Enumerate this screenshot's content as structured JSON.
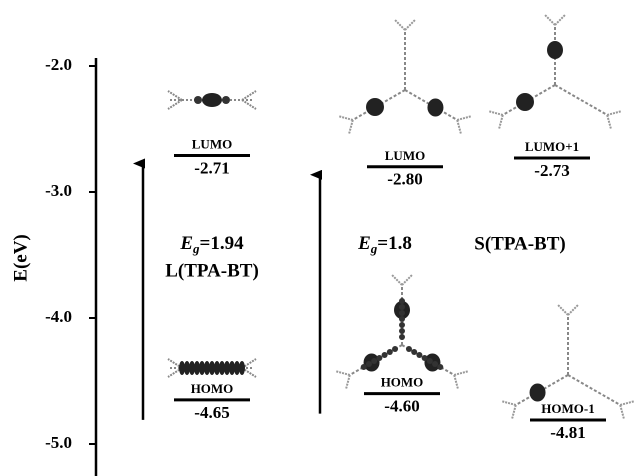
{
  "chart_data": {
    "type": "energy-level",
    "y_label": "E(eV)",
    "ylim": [
      -5.25,
      -1.95
    ],
    "yticks": [
      {
        "value": -2,
        "label": "-2.0"
      },
      {
        "value": -3,
        "label": "-3.0"
      },
      {
        "value": -4,
        "label": "-4.0"
      },
      {
        "value": -5,
        "label": "-5.0"
      }
    ],
    "groups": [
      {
        "name": "L(TPA-BT)",
        "eg": {
          "value": 1.94,
          "label": "Eg=1.94"
        },
        "levels": [
          {
            "name": "LUMO",
            "value": -2.71,
            "value_label": "-2.71"
          },
          {
            "name": "HOMO",
            "value": -4.65,
            "value_label": "-4.65"
          }
        ]
      },
      {
        "name": "S(TPA-BT)",
        "eg": {
          "value": 1.8,
          "label": "Eg=1.8"
        },
        "levels": [
          {
            "name": "LUMO",
            "value": -2.8,
            "value_label": "-2.80"
          },
          {
            "name": "LUMO+1",
            "value": -2.73,
            "value_label": "-2.73"
          },
          {
            "name": "HOMO",
            "value": -4.6,
            "value_label": "-4.60"
          },
          {
            "name": "HOMO-1",
            "value": -4.81,
            "value_label": "-4.81"
          }
        ]
      }
    ]
  }
}
